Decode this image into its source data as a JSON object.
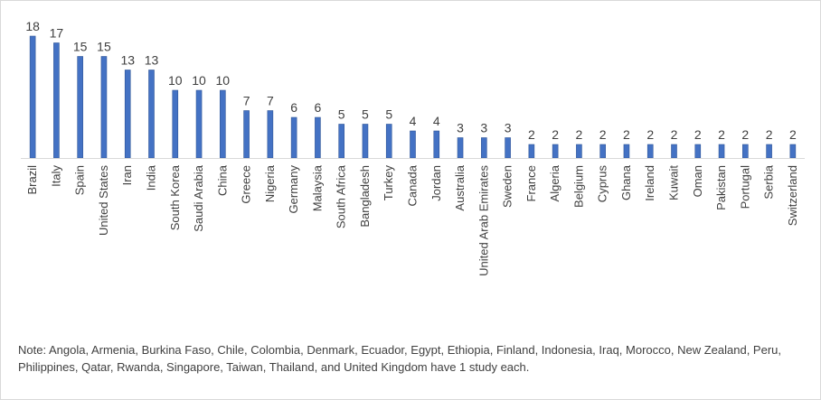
{
  "chart_data": {
    "type": "bar",
    "categories": [
      "Brazil",
      "Italy",
      "Spain",
      "United States",
      "Iran",
      "India",
      "South Korea",
      "Saudi Arabia",
      "China",
      "Greece",
      "Nigeria",
      "Germany",
      "Malaysia",
      "South Africa",
      "Bangladesh",
      "Turkey",
      "Canada",
      "Jordan",
      "Australia",
      "United Arab Emirates",
      "Sweden",
      "France",
      "Algeria",
      "Belgium",
      "Cyprus",
      "Ghana",
      "Ireland",
      "Kuwait",
      "Oman",
      "Pakistan",
      "Portugal",
      "Serbia",
      "Switzerland"
    ],
    "values": [
      18,
      17,
      15,
      15,
      13,
      13,
      10,
      10,
      10,
      7,
      7,
      6,
      6,
      5,
      5,
      5,
      4,
      4,
      3,
      3,
      3,
      2,
      2,
      2,
      2,
      2,
      2,
      2,
      2,
      2,
      2,
      2,
      2
    ],
    "title": "",
    "xlabel": "",
    "ylabel": "",
    "ylim": [
      0,
      18
    ],
    "data_labels": true,
    "grid": false,
    "legend": "none",
    "bar_color": "#4472C4",
    "bar_edge_color": "#2F5597"
  },
  "note": "Note: Angola, Armenia, Burkina Faso, Chile, Colombia, Denmark, Ecuador, Egypt, Ethiopia, Finland, Indonesia, Iraq, Morocco, New Zealand, Peru, Philippines, Qatar, Rwanda, Singapore, Taiwan, Thailand, and United Kingdom have 1 study each."
}
